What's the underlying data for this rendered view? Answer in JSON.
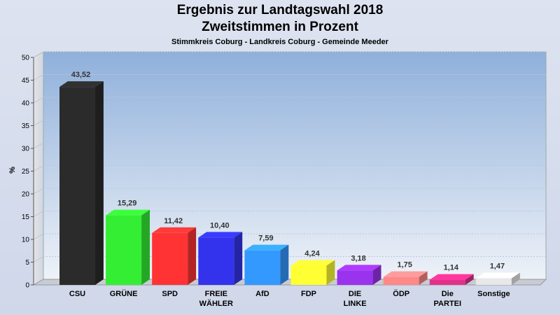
{
  "chart_data": {
    "type": "bar",
    "title": "Ergebnis zur Landtagswahl 2018",
    "subtitle": "Zweitstimmen in Prozent",
    "caption": "Stimmkreis Coburg - Landkreis Coburg - Gemeinde Meeder",
    "ylabel": "%",
    "xlabel": "",
    "ylim": [
      0,
      50
    ],
    "yticks": [
      0,
      5,
      10,
      15,
      20,
      25,
      30,
      35,
      40,
      45,
      50
    ],
    "grid": true,
    "categories": [
      [
        "CSU"
      ],
      [
        "GRÜNE"
      ],
      [
        "SPD"
      ],
      [
        "FREIE",
        "WÄHLER"
      ],
      [
        "AfD"
      ],
      [
        "FDP"
      ],
      [
        "DIE",
        "LINKE"
      ],
      [
        "ÖDP"
      ],
      [
        "Die",
        "PARTEI"
      ],
      [
        "Sonstige"
      ]
    ],
    "values": [
      43.52,
      15.29,
      11.42,
      10.4,
      7.59,
      4.24,
      3.18,
      1.75,
      1.14,
      1.47
    ],
    "value_labels": [
      "43,52",
      "15,29",
      "11,42",
      "10,40",
      "7,59",
      "4,24",
      "3,18",
      "1,75",
      "1,14",
      "1,47"
    ],
    "colors": [
      "#2b2b2b",
      "#33ee33",
      "#ff3333",
      "#3333ee",
      "#3399ff",
      "#ffff33",
      "#9933ee",
      "#ff8888",
      "#e0308a",
      "#e8e8e8"
    ]
  }
}
